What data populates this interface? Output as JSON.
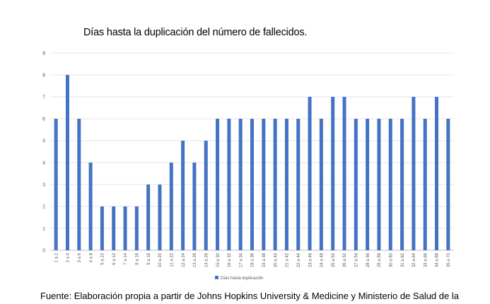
{
  "chart_data": {
    "type": "bar",
    "title": "Días hasta la duplicación del número de fallecidos.",
    "xlabel": "",
    "ylabel": "",
    "ylim": [
      0,
      9
    ],
    "yticks": [
      0,
      1,
      2,
      3,
      4,
      5,
      6,
      7,
      8,
      9
    ],
    "grid": true,
    "legend_position": "bottom",
    "categories": [
      "1 a 2",
      "2 a 4",
      "3 a 6",
      "4 a 8",
      "5 a 10",
      "6 a 12",
      "7 a 14",
      "8 a 16",
      "9 a 18",
      "10 a 20",
      "11 a 22",
      "12 a 24",
      "13 a 26",
      "14 a 28",
      "15 a 30",
      "16 a 32",
      "17 a 34",
      "18 a 36",
      "19 a 38",
      "20 a 40",
      "21 a 42",
      "22 a 44",
      "23 a 46",
      "24 a 48",
      "25 a 50",
      "26 a 52",
      "27 a 54",
      "28 a 56",
      "29 a 58",
      "30 a 60",
      "31 a 62",
      "32 a 64",
      "33 a 66",
      "34 a 68",
      "35 a 70"
    ],
    "series": [
      {
        "name": "Días hasta duplicación",
        "color": "#4472C4",
        "values": [
          6,
          8,
          6,
          4,
          2,
          2,
          2,
          2,
          3,
          3,
          4,
          5,
          4,
          5,
          6,
          6,
          6,
          6,
          6,
          6,
          6,
          6,
          7,
          6,
          7,
          7,
          6,
          6,
          6,
          6,
          6,
          7,
          6,
          7,
          6
        ]
      }
    ]
  },
  "source": "Fuente: Elaboración propia a partir de Johns Hopkins University & Medicine y Ministerio de Salud de la"
}
